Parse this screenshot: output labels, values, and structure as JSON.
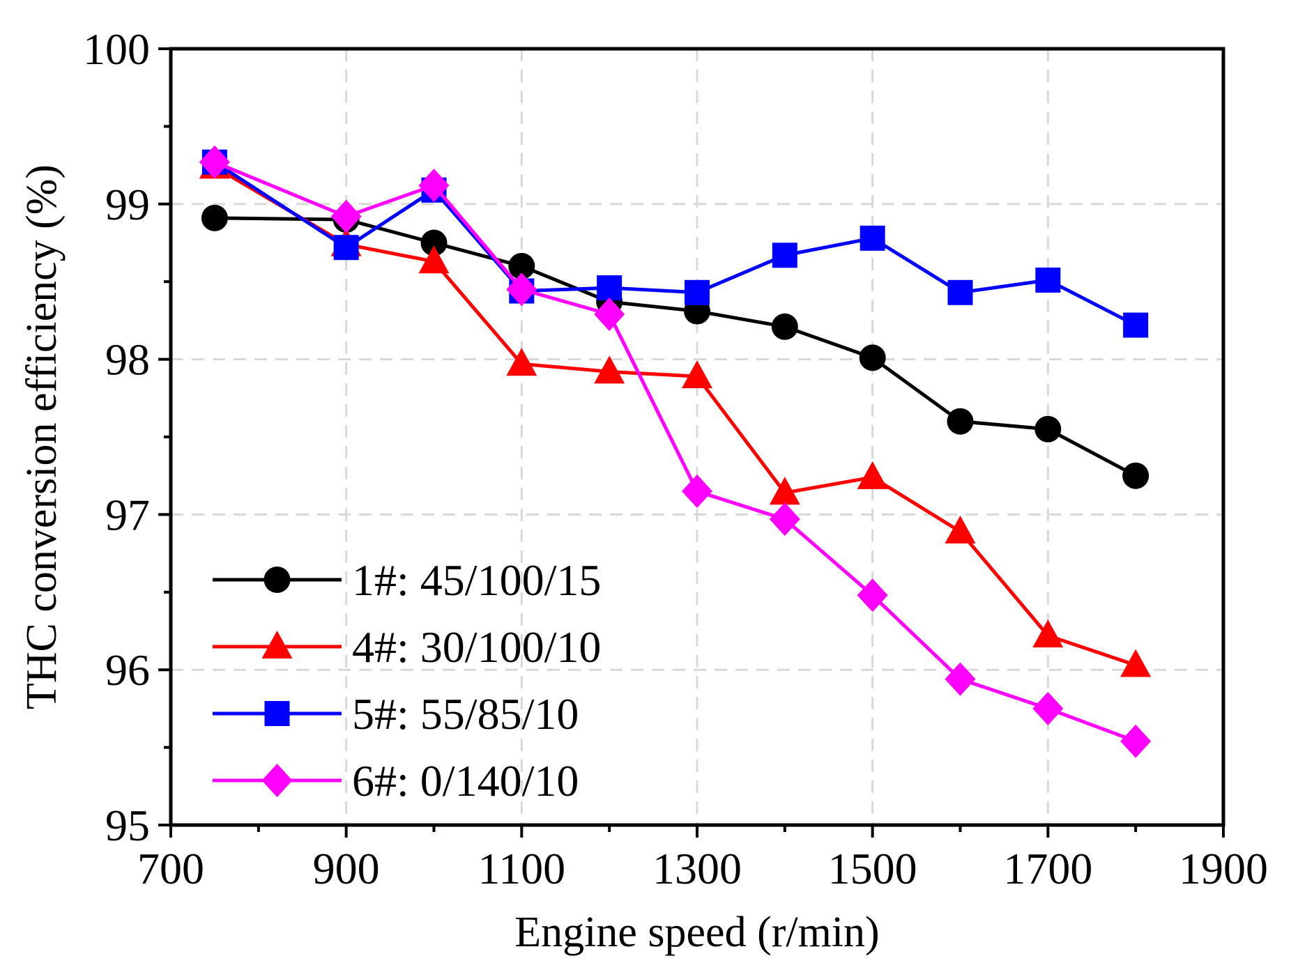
{
  "chart_data": {
    "type": "line",
    "title": "",
    "xlabel": "Engine speed (r/min)",
    "ylabel": "THC conversion efficiency (%)",
    "xlim": [
      700,
      1900
    ],
    "ylim": [
      95,
      100
    ],
    "xticks": [
      700,
      900,
      1100,
      1300,
      1500,
      1700,
      1900
    ],
    "yticks": [
      95,
      96,
      97,
      98,
      99,
      100
    ],
    "grid": true,
    "legend_position": "bottom-left",
    "x": [
      750,
      900,
      1000,
      1100,
      1200,
      1300,
      1400,
      1500,
      1600,
      1700,
      1800
    ],
    "series": [
      {
        "name": "1#: 45/100/15",
        "color": "#000000",
        "marker": "circle",
        "values": [
          98.91,
          98.9,
          98.75,
          98.6,
          98.37,
          98.31,
          98.21,
          98.01,
          97.6,
          97.55,
          97.25
        ]
      },
      {
        "name": "4#: 30/100/10",
        "color": "#ff0000",
        "marker": "triangle",
        "values": [
          99.24,
          98.74,
          98.63,
          97.97,
          97.92,
          97.89,
          97.14,
          97.24,
          96.89,
          96.22,
          96.03
        ]
      },
      {
        "name": "5#: 55/85/10",
        "color": "#0000ff",
        "marker": "square",
        "values": [
          99.27,
          98.72,
          99.09,
          98.44,
          98.46,
          98.43,
          98.67,
          98.78,
          98.43,
          98.51,
          98.22
        ]
      },
      {
        "name": "6#: 0/140/10",
        "color": "#ff00ff",
        "marker": "diamond",
        "values": [
          99.27,
          98.92,
          99.12,
          98.45,
          98.29,
          97.15,
          96.97,
          96.48,
          95.94,
          95.75,
          95.54
        ]
      }
    ]
  }
}
